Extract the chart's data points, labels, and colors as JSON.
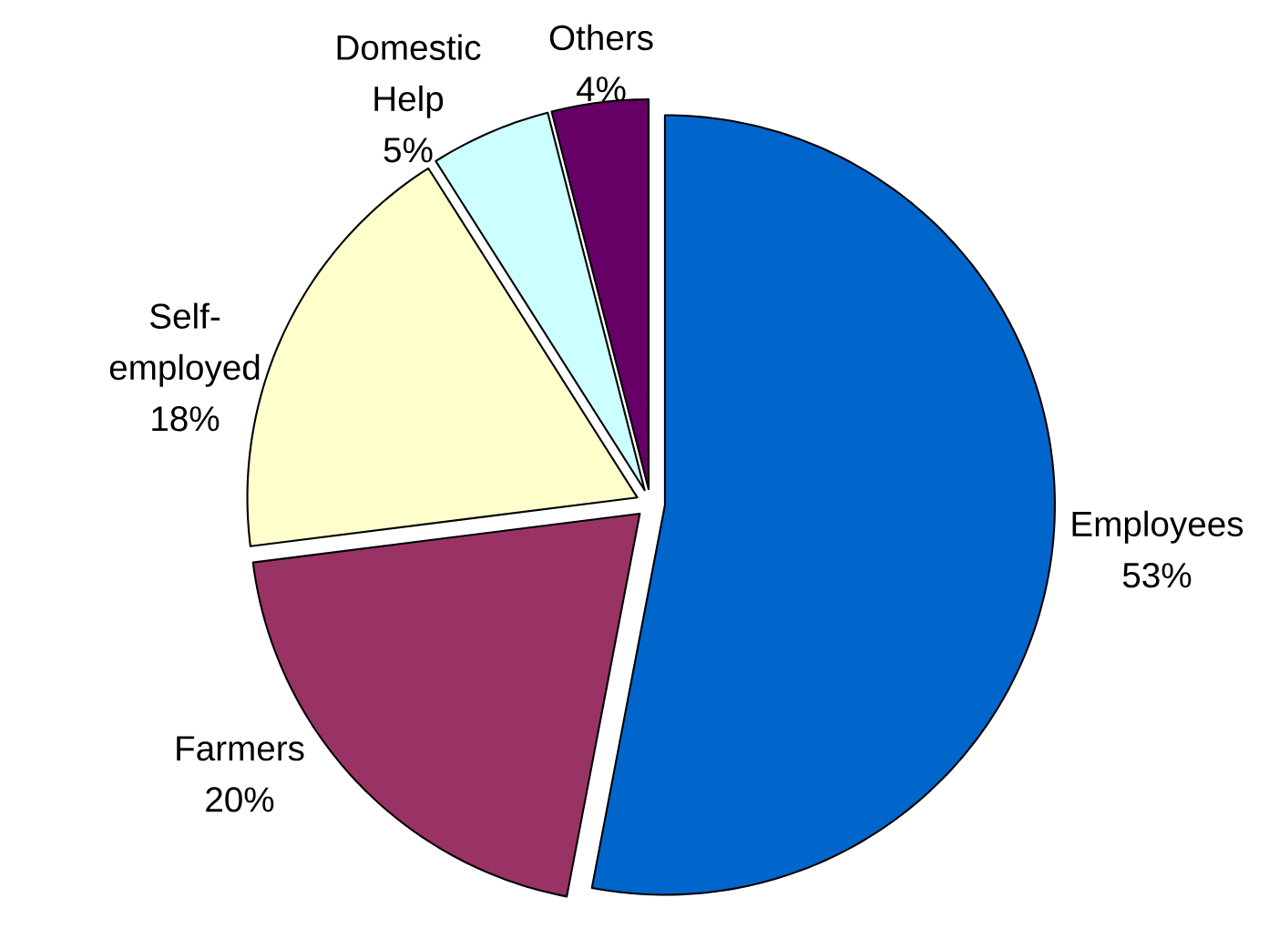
{
  "chart_data": {
    "type": "pie",
    "categories": [
      "Employees",
      "Farmers",
      "Self-employed",
      "Domestic Help",
      "Others"
    ],
    "values": [
      53,
      20,
      18,
      5,
      4
    ],
    "value_labels": [
      "53%",
      "20%",
      "18%",
      "5%",
      "4%"
    ],
    "colors": [
      "#0066cc",
      "#993366",
      "#ffffcc",
      "#ccffff",
      "#660066"
    ],
    "legend": false
  }
}
